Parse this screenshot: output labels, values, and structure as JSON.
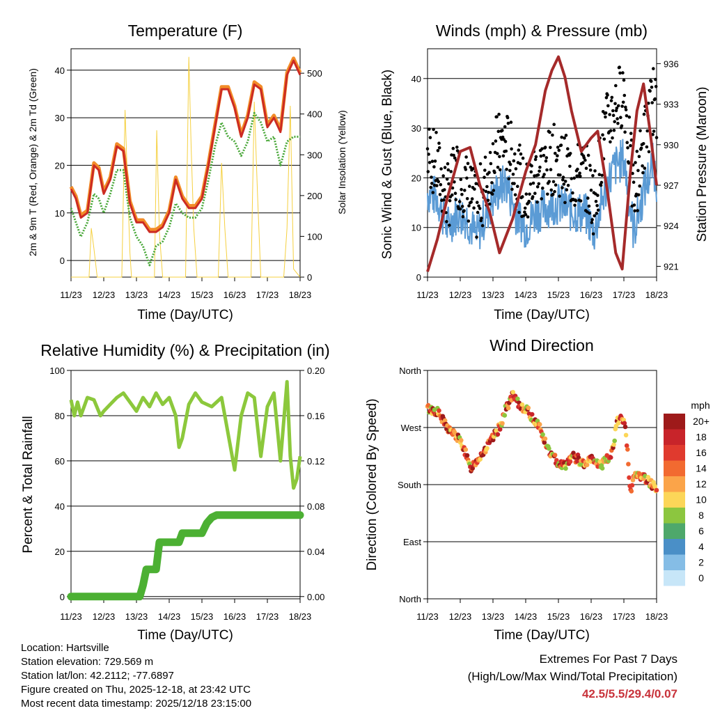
{
  "x_ticks": [
    "11/23",
    "12/23",
    "13/23",
    "14/23",
    "15/23",
    "16/23",
    "17/23",
    "18/23"
  ],
  "x_label": "Time (Day/UTC)",
  "chart_data": [
    {
      "type": "line",
      "title": "Temperature (F)",
      "xlabel": "Time (Day/UTC)",
      "ylabel": "2m & 9m T (Red, Orange) & 2m Td (Green)",
      "ylabel_right": "Solar Insolation (Yellow)",
      "ylim": [
        -3.5,
        44.5
      ],
      "yticks": [
        0,
        10,
        20,
        30,
        40
      ],
      "ylim_right": [
        0,
        560
      ],
      "yticks_right": [
        0,
        100,
        200,
        300,
        400,
        500
      ],
      "x": [
        0,
        0.15,
        0.3,
        0.5,
        0.7,
        0.85,
        1.0,
        1.2,
        1.4,
        1.6,
        1.8,
        2.0,
        2.2,
        2.4,
        2.6,
        2.8,
        3.0,
        3.2,
        3.4,
        3.6,
        3.8,
        4.0,
        4.2,
        4.4,
        4.6,
        4.8,
        5.0,
        5.2,
        5.4,
        5.6,
        5.8,
        6.0,
        6.2,
        6.4,
        6.6,
        6.8,
        7.0
      ],
      "series": [
        {
          "name": "2m T",
          "color": "#cc2b23",
          "values": [
            15,
            13,
            9,
            10,
            20,
            19,
            14,
            17,
            24,
            23,
            12,
            8,
            8,
            6,
            6,
            7,
            10,
            17,
            13,
            11,
            11,
            13,
            20,
            28,
            36,
            36,
            32,
            26,
            30,
            37,
            36,
            28,
            30,
            27,
            39,
            42,
            39
          ]
        },
        {
          "name": "9m T",
          "color": "#f28c28",
          "values": [
            15.5,
            13.5,
            9.5,
            10.5,
            20.5,
            19.5,
            14.5,
            17.5,
            24.5,
            23.5,
            12.5,
            8.5,
            8.5,
            6.5,
            6.5,
            7.5,
            10.5,
            17.5,
            13.5,
            11.5,
            11.5,
            13.5,
            20.5,
            28.5,
            36.5,
            36.5,
            32.5,
            26.5,
            30.5,
            37.5,
            36.5,
            28.5,
            30.5,
            27.5,
            39.5,
            42.5,
            39.5
          ]
        },
        {
          "name": "2m Td",
          "color": "#4aa83a",
          "values": [
            11,
            8,
            5,
            8,
            14,
            13,
            10,
            14,
            19,
            19,
            9,
            5,
            3,
            -1,
            3,
            4,
            7,
            12,
            10,
            9,
            9,
            11,
            17,
            24,
            29,
            26,
            25,
            22,
            25,
            31,
            29,
            25,
            26,
            20,
            25,
            26,
            26
          ]
        },
        {
          "name": "Solar Insolation",
          "color": "#f5d040",
          "axis": "right",
          "x": [
            0,
            0.55,
            0.62,
            0.7,
            0.8,
            1.0,
            1.55,
            1.65,
            1.8,
            1.85,
            2.0,
            2.55,
            2.62,
            2.7,
            2.8,
            3.0,
            3.5,
            3.6,
            3.67,
            3.75,
            3.85,
            4.0,
            4.5,
            4.6,
            4.7,
            4.8,
            5.0,
            5.5,
            5.6,
            5.7,
            5.8,
            6.0,
            6.5,
            6.6,
            6.7,
            6.8,
            7.0
          ],
          "values": [
            0,
            0,
            120,
            70,
            0,
            0,
            0,
            410,
            60,
            0,
            0,
            0,
            360,
            110,
            0,
            0,
            0,
            540,
            320,
            120,
            0,
            0,
            0,
            280,
            120,
            0,
            0,
            0,
            430,
            200,
            0,
            0,
            0,
            120,
            420,
            20,
            0
          ]
        }
      ]
    },
    {
      "type": "scatter",
      "title": "Winds (mph) & Pressure (mb)",
      "xlabel": "Time (Day/UTC)",
      "ylabel": "Sonic Wind & Gust (Blue, Black)",
      "ylabel_right": "Station Pressure (Maroon)",
      "ylim": [
        0,
        46
      ],
      "yticks": [
        0,
        10,
        20,
        30,
        40
      ],
      "ylim_right": [
        920.2,
        937.1
      ],
      "yticks_right": [
        921,
        924,
        927,
        930,
        933,
        936
      ],
      "x": [
        0,
        0.3,
        0.6,
        0.9,
        1.2,
        1.5,
        1.8,
        2.1,
        2.4,
        2.7,
        3.0,
        3.3,
        3.6,
        3.9,
        4.2,
        4.5,
        4.8,
        5.1,
        5.4,
        5.7,
        6.0,
        6.3,
        6.6,
        6.9,
        7.0
      ],
      "series": [
        {
          "name": "Sonic Wind",
          "color": "#5b9bd5",
          "values": [
            17,
            16,
            10,
            13,
            12,
            8,
            13,
            17,
            19,
            13,
            10,
            13,
            14,
            15,
            14,
            13,
            13,
            9,
            17,
            22,
            24,
            9,
            17,
            23,
            19
          ]
        },
        {
          "name": "Gust",
          "color": "#000000",
          "values": [
            25,
            22,
            16,
            21,
            18,
            14,
            19,
            26,
            27,
            22,
            16,
            21,
            22,
            24,
            22,
            20,
            21,
            15,
            29,
            34,
            38,
            16,
            27,
            36,
            32
          ]
        },
        {
          "name": "Station Pressure",
          "color": "#a52a2a",
          "axis": "right",
          "x": [
            0,
            0.3,
            0.6,
            1.0,
            1.3,
            1.6,
            1.9,
            2.2,
            2.6,
            3.0,
            3.3,
            3.6,
            3.8,
            4.0,
            4.2,
            4.4,
            4.7,
            5.0,
            5.2,
            5.5,
            5.75,
            5.95,
            6.2,
            6.4,
            6.6,
            6.8,
            7.0
          ],
          "values": [
            920.6,
            923,
            926,
            929.5,
            929.8,
            927,
            925,
            922,
            924.5,
            928,
            930,
            934,
            935.5,
            936.5,
            935,
            932.5,
            929.5,
            930.5,
            931,
            926.5,
            922,
            920.8,
            928,
            932.5,
            934.5,
            931,
            927
          ]
        }
      ]
    },
    {
      "type": "line",
      "title": "Relative Humidity (%) & Precipitation (in)",
      "xlabel": "Time (Day/UTC)",
      "ylabel": "Percent & Total Rainfall",
      "ylim": [
        -1,
        100
      ],
      "yticks": [
        0,
        20,
        40,
        60,
        80,
        100
      ],
      "ylim_right": [
        -0.002,
        0.2
      ],
      "yticks_right_labels": [
        "0.00",
        "0.04",
        "0.08",
        "0.12",
        "0.16",
        "0.20"
      ],
      "yticks_right": [
        0,
        0.04,
        0.08,
        0.12,
        0.16,
        0.2
      ],
      "series": [
        {
          "name": "Relative Humidity",
          "color": "#8cc83c",
          "x": [
            0,
            0.1,
            0.2,
            0.3,
            0.5,
            0.7,
            0.9,
            1.0,
            1.2,
            1.4,
            1.6,
            1.8,
            2.0,
            2.2,
            2.4,
            2.6,
            2.8,
            3.0,
            3.2,
            3.3,
            3.4,
            3.6,
            3.8,
            4.0,
            4.3,
            4.6,
            4.8,
            5.0,
            5.2,
            5.4,
            5.6,
            5.8,
            6.0,
            6.2,
            6.4,
            6.6,
            6.7,
            6.8,
            6.9,
            7.0
          ],
          "values": [
            87,
            80,
            86,
            80,
            88,
            87,
            80,
            82,
            85,
            88,
            90,
            86,
            82,
            88,
            84,
            90,
            85,
            88,
            80,
            66,
            70,
            85,
            90,
            86,
            84,
            88,
            72,
            56,
            80,
            90,
            88,
            62,
            84,
            90,
            60,
            95,
            62,
            48,
            52,
            62
          ]
        },
        {
          "name": "Total Precipitation",
          "color": "#4cb033",
          "axis": "right",
          "x": [
            0,
            2.1,
            2.2,
            2.3,
            2.6,
            2.7,
            3.3,
            3.4,
            4.0,
            4.15,
            4.3,
            4.45,
            7.0
          ],
          "values": [
            0,
            0,
            0.01,
            0.024,
            0.024,
            0.048,
            0.048,
            0.056,
            0.056,
            0.065,
            0.07,
            0.072,
            0.072
          ]
        }
      ]
    },
    {
      "type": "scatter",
      "title": "Wind Direction",
      "xlabel": "Time (Day/UTC)",
      "ylabel": "Direction (Colored By Speed)",
      "yticks": [
        0,
        90,
        180,
        270,
        360
      ],
      "ytick_labels": [
        "North",
        "East",
        "South",
        "West",
        "North"
      ],
      "ylim": [
        0,
        360
      ],
      "x": [
        0,
        0.3,
        0.6,
        0.9,
        1.1,
        1.3,
        1.6,
        1.9,
        2.2,
        2.4,
        2.6,
        2.8,
        3.0,
        3.2,
        3.4,
        3.6,
        3.8,
        4.0,
        4.2,
        4.4,
        4.6,
        4.8,
        5.0,
        5.3,
        5.6,
        5.8,
        6.0,
        6.1,
        6.2,
        6.3,
        6.4,
        6.6,
        6.8,
        7.0
      ],
      "values": [
        300,
        295,
        270,
        255,
        240,
        205,
        225,
        245,
        270,
        300,
        320,
        305,
        300,
        285,
        275,
        245,
        225,
        215,
        210,
        225,
        220,
        210,
        220,
        210,
        225,
        278,
        285,
        240,
        170,
        190,
        195,
        192,
        183,
        175
      ],
      "legend": {
        "title": "mph",
        "labels": [
          "20+",
          "18",
          "16",
          "14",
          "12",
          "10",
          "8",
          "6",
          "4",
          "2",
          "0"
        ],
        "colors": [
          "#9e1a1a",
          "#c8242a",
          "#e03a2e",
          "#f26a30",
          "#fba449",
          "#fcd658",
          "#8cc63f",
          "#4ea86b",
          "#4a8fc7",
          "#85bde6",
          "#c7e6f8"
        ]
      }
    }
  ],
  "station": {
    "location": "Location: Hartsville",
    "elevation": "Station elevation: 729.569 m",
    "latlon": "Station lat/lon: 42.2112; -77.6897",
    "created": "Figure created on Thu, 2025-12-18, at 23:42 UTC",
    "recent": "Most recent data timestamp: 2025/12/18 23:15:00"
  },
  "extremes": {
    "line1": "Extremes For Past 7 Days",
    "line2": "(High/Low/Max Wind/Total Precipitation)",
    "values": "42.5/5.5/29.4/0.07"
  }
}
